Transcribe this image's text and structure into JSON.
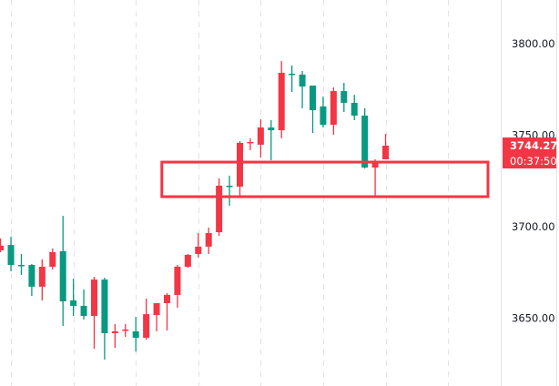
{
  "chart_data": {
    "type": "candlestick",
    "title": "",
    "xlabel": "",
    "ylabel": "",
    "ylim": [
      3613,
      3824
    ],
    "y_ticks": [
      "3800.00",
      "3750.00",
      "3700.00",
      "3650.00"
    ],
    "y_tick_values": [
      3800,
      3750,
      3700,
      3650
    ],
    "grid": {
      "vertical": true,
      "horizontal": false,
      "vertical_every_n_candles": 6,
      "vertical_first_candle": 1
    },
    "colors": {
      "up": "#f23645",
      "down": "#089981",
      "grid": "#e0e3eb",
      "annotation": "#f23645",
      "axis_text": "#131722"
    },
    "candles": [
      {
        "o": 3687.1,
        "h": 3693.5,
        "l": 3686.1,
        "c": 3689.6
      },
      {
        "o": 3690.0,
        "h": 3694.5,
        "l": 3675.6,
        "c": 3679.1
      },
      {
        "o": 3679.1,
        "h": 3685.1,
        "l": 3673.6,
        "c": 3678.8
      },
      {
        "o": 3679.1,
        "h": 3679.6,
        "l": 3662.2,
        "c": 3667.2
      },
      {
        "o": 3667.2,
        "h": 3682.1,
        "l": 3659.7,
        "c": 3678.1
      },
      {
        "o": 3678.1,
        "h": 3688.1,
        "l": 3676.6,
        "c": 3686.1
      },
      {
        "o": 3686.6,
        "h": 3705.9,
        "l": 3645.8,
        "c": 3659.2
      },
      {
        "o": 3659.7,
        "h": 3671.6,
        "l": 3651.2,
        "c": 3656.7
      },
      {
        "o": 3656.7,
        "h": 3665.7,
        "l": 3649.3,
        "c": 3651.2
      },
      {
        "o": 3651.2,
        "h": 3672.6,
        "l": 3633.3,
        "c": 3671.1
      },
      {
        "o": 3671.1,
        "h": 3672.1,
        "l": 3627.4,
        "c": 3641.8
      },
      {
        "o": 3641.8,
        "h": 3646.8,
        "l": 3633.8,
        "c": 3642.8
      },
      {
        "o": 3643.5,
        "h": 3646.8,
        "l": 3639.8,
        "c": 3643.8
      },
      {
        "o": 3642.8,
        "h": 3650.7,
        "l": 3631.8,
        "c": 3639.3
      },
      {
        "o": 3639.3,
        "h": 3660.7,
        "l": 3638.3,
        "c": 3652.2
      },
      {
        "o": 3651.7,
        "h": 3658.2,
        "l": 3642.8,
        "c": 3658.2
      },
      {
        "o": 3658.2,
        "h": 3663.7,
        "l": 3643.3,
        "c": 3662.7
      },
      {
        "o": 3662.7,
        "h": 3679.1,
        "l": 3655.7,
        "c": 3678.1
      },
      {
        "o": 3678.1,
        "h": 3685.1,
        "l": 3677.6,
        "c": 3684.6
      },
      {
        "o": 3685.1,
        "h": 3696.5,
        "l": 3683.1,
        "c": 3689.1
      },
      {
        "o": 3689.1,
        "h": 3699.5,
        "l": 3685.1,
        "c": 3696.5
      },
      {
        "o": 3697.0,
        "h": 3726.4,
        "l": 3695.0,
        "c": 3722.4
      },
      {
        "o": 3722.4,
        "h": 3727.9,
        "l": 3711.4,
        "c": 3721.9
      },
      {
        "o": 3721.9,
        "h": 3746.8,
        "l": 3716.9,
        "c": 3745.8
      },
      {
        "o": 3746.0,
        "h": 3748.3,
        "l": 3741.8,
        "c": 3746.3
      },
      {
        "o": 3744.8,
        "h": 3758.7,
        "l": 3737.8,
        "c": 3754.2
      },
      {
        "o": 3754.2,
        "h": 3758.2,
        "l": 3736.3,
        "c": 3752.7
      },
      {
        "o": 3752.7,
        "h": 3790.5,
        "l": 3748.3,
        "c": 3784.1
      },
      {
        "o": 3783.6,
        "h": 3788.1,
        "l": 3773.6,
        "c": 3783.1
      },
      {
        "o": 3783.1,
        "h": 3785.1,
        "l": 3764.7,
        "c": 3776.6
      },
      {
        "o": 3777.1,
        "h": 3777.1,
        "l": 3751.2,
        "c": 3763.7
      },
      {
        "o": 3765.7,
        "h": 3771.1,
        "l": 3754.2,
        "c": 3755.7
      },
      {
        "o": 3755.7,
        "h": 3776.1,
        "l": 3750.2,
        "c": 3774.1
      },
      {
        "o": 3774.1,
        "h": 3778.6,
        "l": 3762.7,
        "c": 3767.7
      },
      {
        "o": 3767.7,
        "h": 3772.1,
        "l": 3758.2,
        "c": 3760.7
      },
      {
        "o": 3760.7,
        "h": 3764.7,
        "l": 3731.8,
        "c": 3732.3
      },
      {
        "o": 3732.3,
        "h": 3736.8,
        "l": 3716.4,
        "c": 3735.3
      },
      {
        "o": 3736.8,
        "h": 3750.7,
        "l": 3736.8,
        "c": 3744.27
      }
    ],
    "annotation_rectangle": {
      "price_top": 3735.3,
      "price_bottom": 3716.4,
      "start_candle": 15.5,
      "extends_right": true
    },
    "last_price": {
      "value": 3744.27,
      "label": "3744.27",
      "countdown": "00:37:50",
      "color": "#f23645"
    }
  }
}
